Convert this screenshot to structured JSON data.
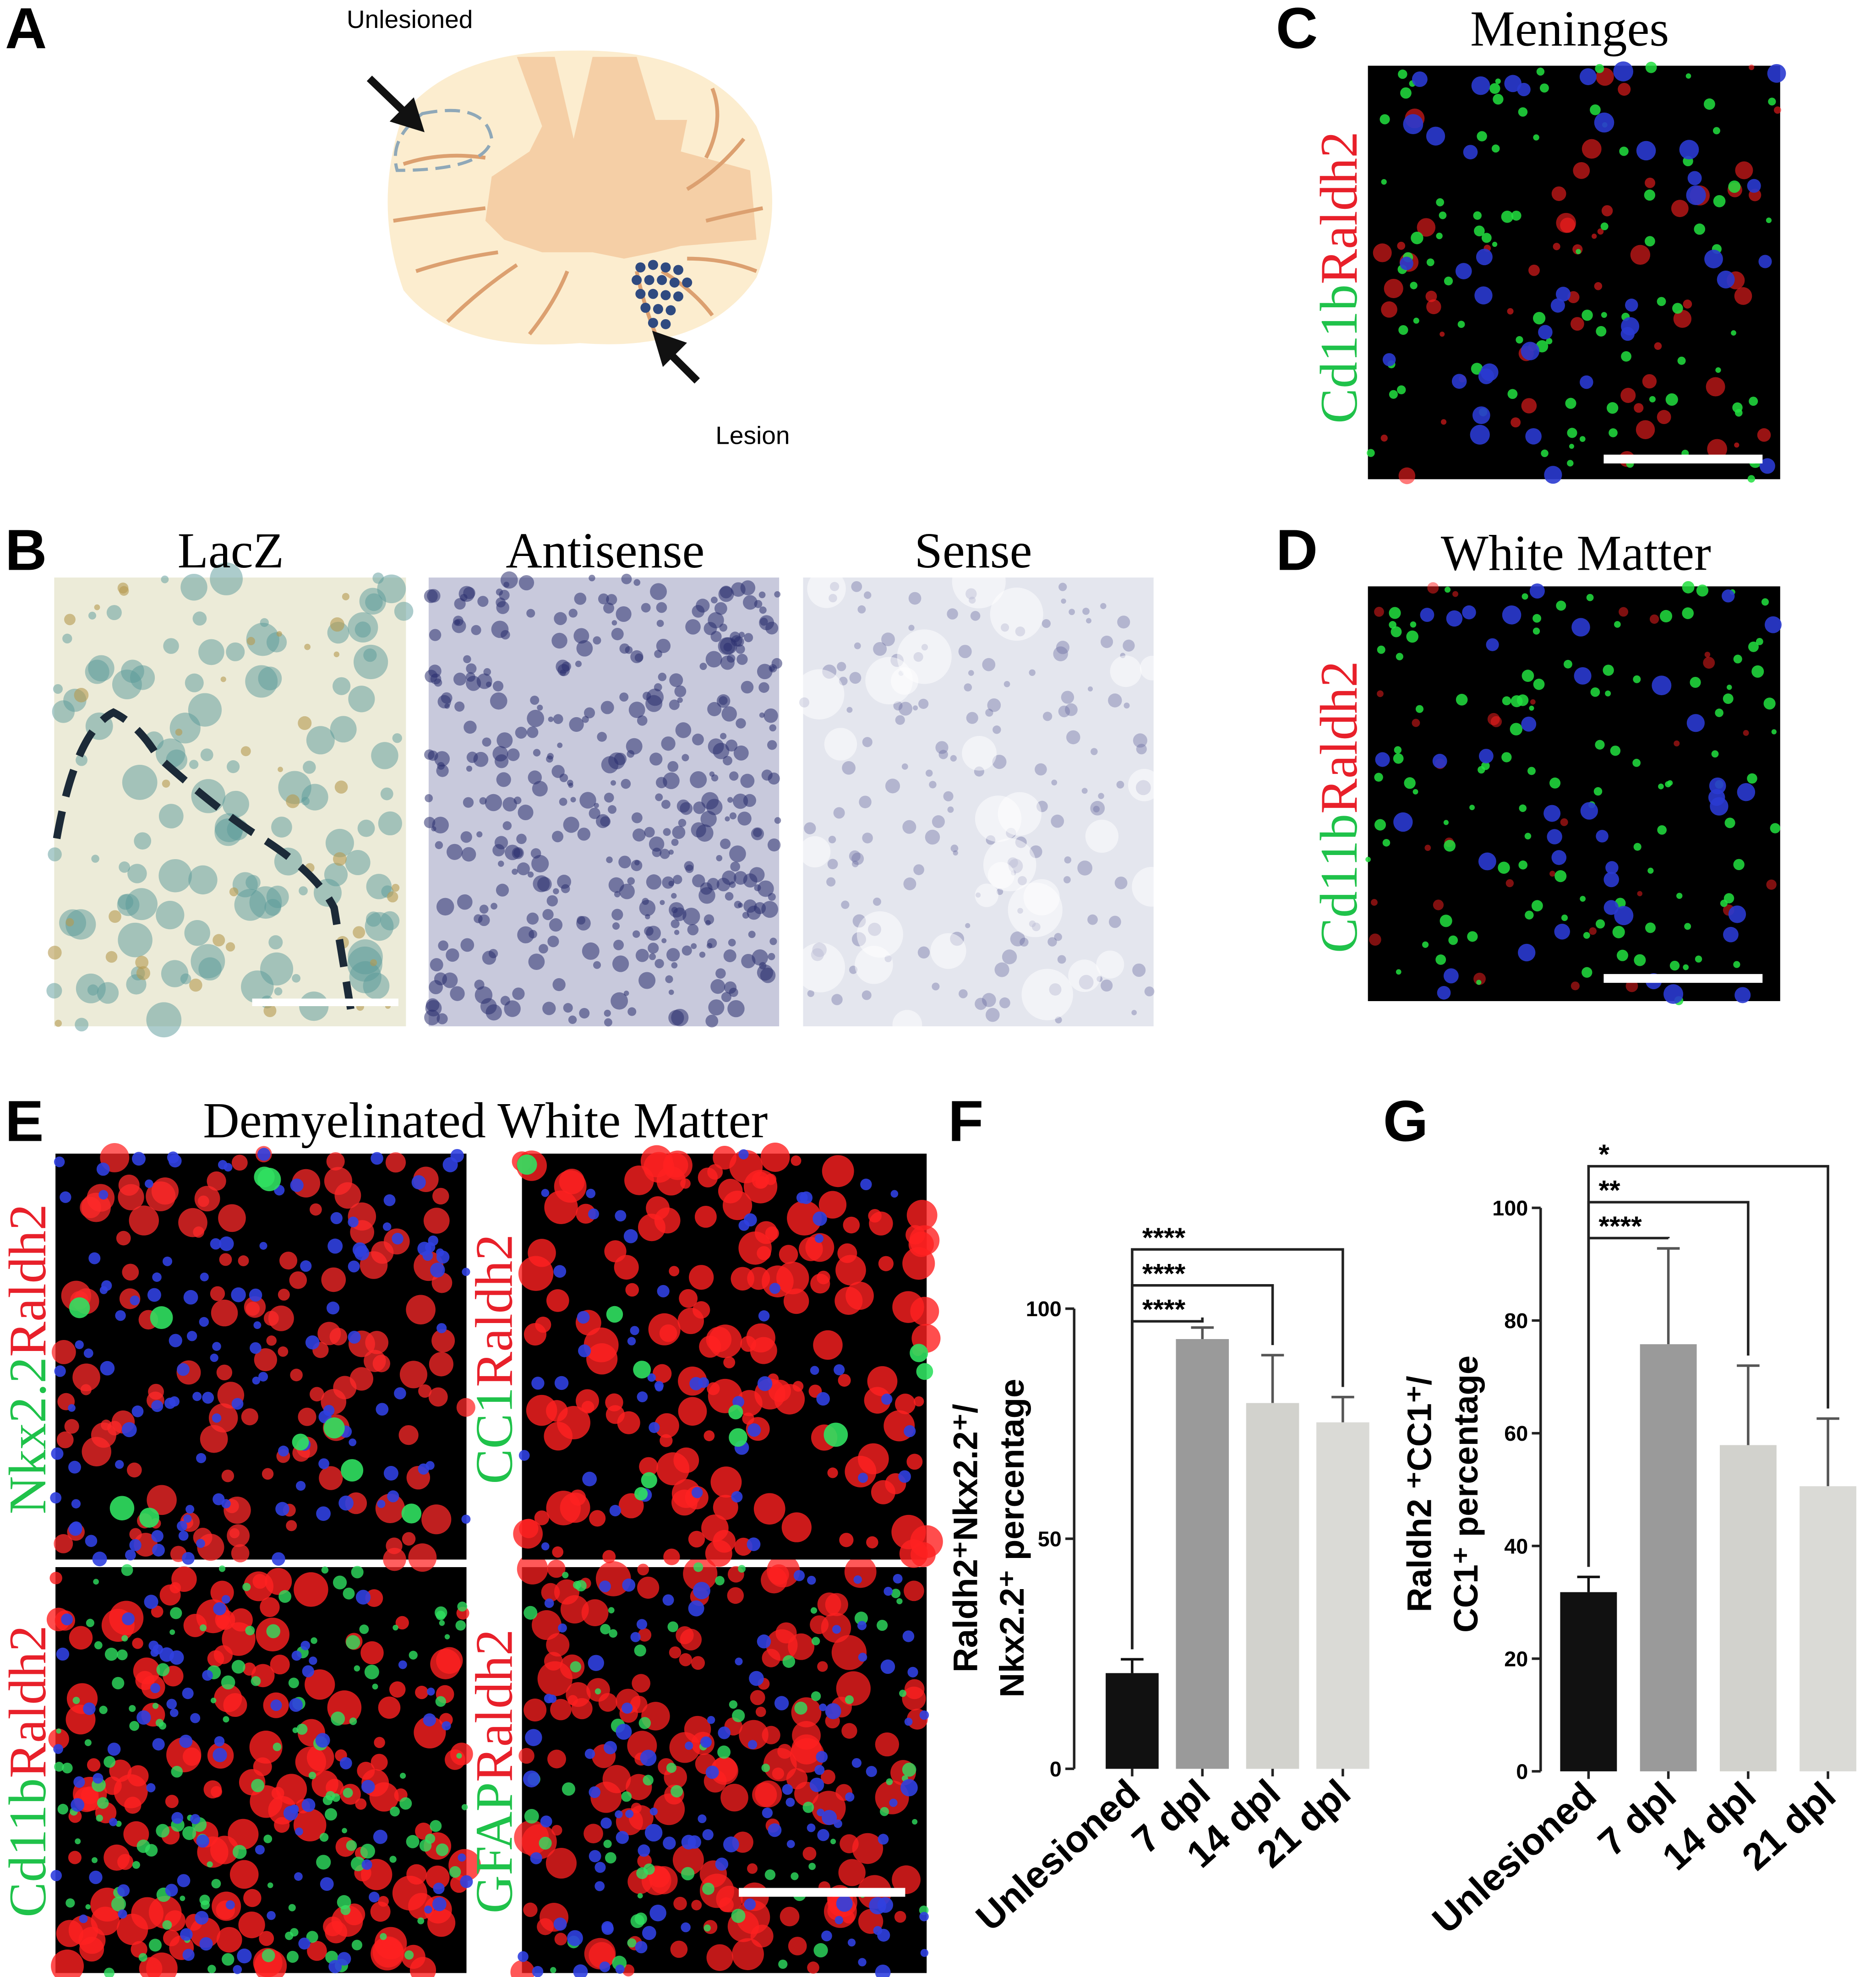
{
  "figure": {
    "panel_letters": [
      "A",
      "B",
      "C",
      "D",
      "E",
      "F",
      "G"
    ],
    "A": {
      "unlesioned": "Unlesioned",
      "lesion": "Lesion"
    },
    "B": {
      "titles": [
        "LacZ",
        "Antisense",
        "Sense"
      ]
    },
    "C": {
      "title": "Meninges",
      "stain": {
        "green": "Cd11b",
        "red": "Raldh2"
      }
    },
    "D": {
      "title": "White Matter",
      "stain": {
        "green": "Cd11b",
        "red": "Raldh2"
      }
    },
    "E": {
      "title": "Demyelinated White Matter",
      "stains": [
        {
          "green": "Nkx2.2",
          "red": "Raldh2"
        },
        {
          "green": "CC1",
          "red": "Raldh2"
        },
        {
          "green": "Cd11b",
          "red": "Raldh2"
        },
        {
          "green": "GFAP",
          "red": "Raldh2"
        }
      ]
    }
  },
  "chart_data": [
    {
      "type": "bar",
      "y_label": [
        "Raldh2⁺Nkx2.2⁺/",
        "Nkx2.2⁺ percentage"
      ],
      "categories": [
        "Unlesioned",
        "7 dpl",
        "14 dpl",
        "21 dpl"
      ],
      "values": [
        20.8,
        93.4,
        79.5,
        75.3
      ],
      "errors": [
        3,
        2.5,
        10.4,
        5.5
      ],
      "colors": [
        "#111111",
        "#9a9a9a",
        "#d2d2cd",
        "#dadad6"
      ],
      "ylim": [
        0,
        100
      ],
      "yticks": [
        0,
        50,
        100
      ],
      "comparisons": [
        {
          "from": "Unlesioned",
          "to": "7 dpl",
          "label": "****"
        },
        {
          "from": "Unlesioned",
          "to": "14 dpl",
          "label": "****"
        },
        {
          "from": "Unlesioned",
          "to": "21 dpl",
          "label": "****"
        }
      ]
    },
    {
      "type": "bar",
      "y_label": [
        "Raldh2 ⁺CC1⁺/",
        "CC1⁺ percentage"
      ],
      "categories": [
        "Unlesioned",
        "7 dpl",
        "14 dpl",
        "21 dpl"
      ],
      "values": [
        31.8,
        75.8,
        57.9,
        50.6
      ],
      "errors": [
        2.7,
        17,
        14.1,
        12
      ],
      "colors": [
        "#111111",
        "#9a9a9a",
        "#d2d2cd",
        "#dadad6"
      ],
      "ylim": [
        0,
        100
      ],
      "yticks": [
        0,
        20,
        40,
        60,
        80,
        100
      ],
      "comparisons": [
        {
          "from": "Unlesioned",
          "to": "7 dpl",
          "label": "****"
        },
        {
          "from": "Unlesioned",
          "to": "14 dpl",
          "label": "**"
        },
        {
          "from": "Unlesioned",
          "to": "21 dpl",
          "label": "*"
        }
      ]
    }
  ]
}
